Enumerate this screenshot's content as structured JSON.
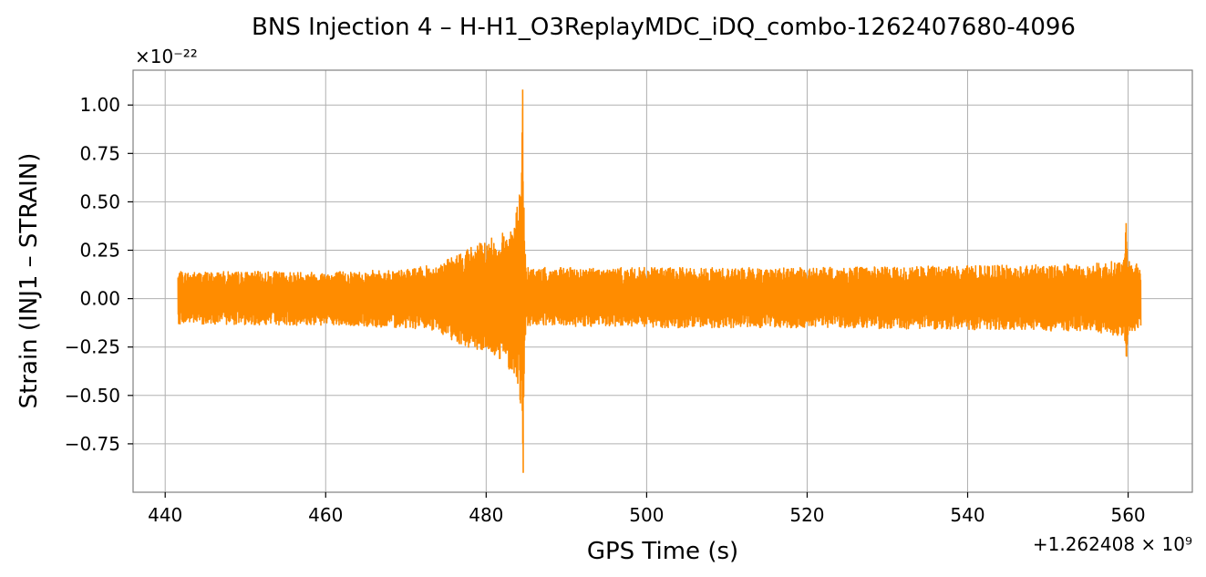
{
  "chart_data": {
    "type": "line",
    "title": "BNS Injection 4 – H-H1_O3ReplayMDC_iDQ_combo-1262407680-4096",
    "xlabel": "GPS Time (s)",
    "ylabel": "Strain (INJ1 – STRAIN)",
    "y_multiplier": "×10⁻²²",
    "x_offset": "+1.262408 × 10⁹",
    "xlim": [
      436,
      568
    ],
    "ylim": [
      -1.0,
      1.18
    ],
    "x_ticks": [
      440,
      460,
      480,
      500,
      520,
      540,
      560
    ],
    "x_tick_labels": [
      "440",
      "460",
      "480",
      "500",
      "520",
      "540",
      "560"
    ],
    "y_ticks": [
      1.0,
      0.75,
      0.5,
      0.25,
      0.0,
      -0.25,
      -0.5,
      -0.75
    ],
    "y_tick_labels": [
      "1.00",
      "0.75",
      "0.50",
      "0.25",
      "0.00",
      "−0.25",
      "−0.50",
      "−0.75"
    ],
    "grid": true,
    "series": [
      {
        "color": "#ff8c00",
        "x_start": 441.6,
        "x_end": 561.6,
        "baseline_envelope": [
          [
            441.6,
            0.14,
            -0.13
          ],
          [
            460.0,
            0.14,
            -0.14
          ],
          [
            470.0,
            0.15,
            -0.15
          ],
          [
            474.0,
            0.18,
            -0.17
          ],
          [
            476.0,
            0.22,
            -0.22
          ],
          [
            478.0,
            0.27,
            -0.26
          ],
          [
            480.0,
            0.3,
            -0.28
          ],
          [
            482.0,
            0.34,
            -0.32
          ],
          [
            483.5,
            0.4,
            -0.4
          ],
          [
            484.3,
            0.6,
            -0.55
          ],
          [
            484.55,
            1.08,
            -0.9
          ],
          [
            484.8,
            0.25,
            -0.2
          ],
          [
            485.2,
            0.16,
            -0.14
          ],
          [
            500.0,
            0.16,
            -0.15
          ],
          [
            520.0,
            0.16,
            -0.15
          ],
          [
            540.0,
            0.17,
            -0.16
          ],
          [
            555.0,
            0.18,
            -0.17
          ],
          [
            559.5,
            0.2,
            -0.2
          ],
          [
            559.75,
            0.39,
            -0.3
          ],
          [
            560.0,
            0.2,
            -0.18
          ],
          [
            561.6,
            0.17,
            -0.16
          ]
        ]
      }
    ]
  }
}
